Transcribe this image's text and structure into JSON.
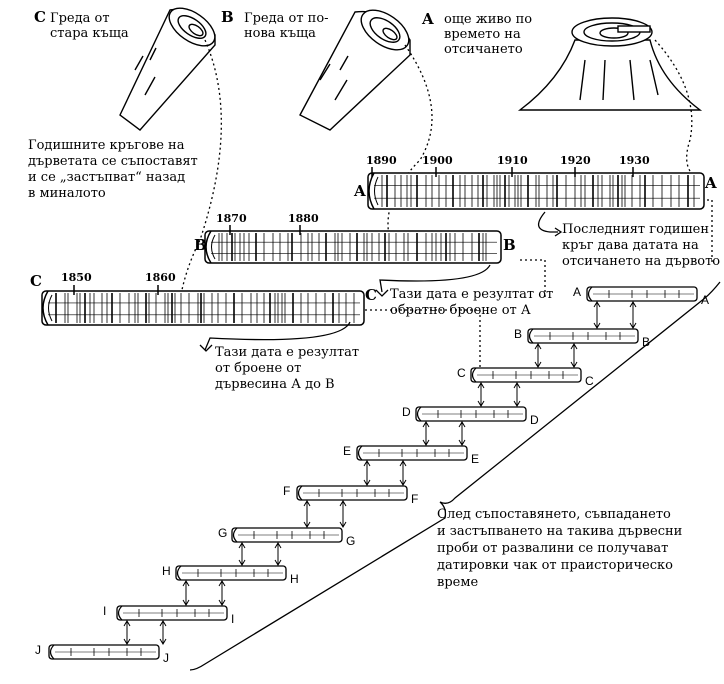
{
  "stumps": {
    "C": {
      "letter": "C",
      "caption": "Греда от\nстара къща"
    },
    "B": {
      "letter": "B",
      "caption": "Греда от по-\nнова къща"
    },
    "A": {
      "letter": "A",
      "caption": "още живо по\nвремето на\nотсичането"
    }
  },
  "annotations": {
    "overlap_note": "Годишните кръгове на\nдърветата се съпоставят\nи се „застъпват“ назад\nв миналото",
    "last_ring_note": "Последният годишен\nкръг дава датата на\nотсичането на дървото",
    "date_from_a_note": "Тази дата е резултат от\nобратно броене от А",
    "date_from_b_note": "Тази дата е резултат\nот броене от\nдървесина А до В",
    "prehistoric_note": "След съпоставянето, съвпадането\nи застъпването на такива дървесни\nпроби от развалини се получават\nдатировки чак от праисторическо\nвреме"
  },
  "big_logs": {
    "A": {
      "letter": "A",
      "years": [
        "1890",
        "1900",
        "1910",
        "1920",
        "1930"
      ]
    },
    "B": {
      "letter": "B",
      "years": [
        "1870",
        "1880"
      ]
    },
    "C": {
      "letter": "C",
      "years": [
        "1850",
        "1860"
      ]
    }
  },
  "staircase_labels": [
    "A",
    "B",
    "C",
    "D",
    "E",
    "F",
    "G",
    "H",
    "I",
    "J"
  ]
}
